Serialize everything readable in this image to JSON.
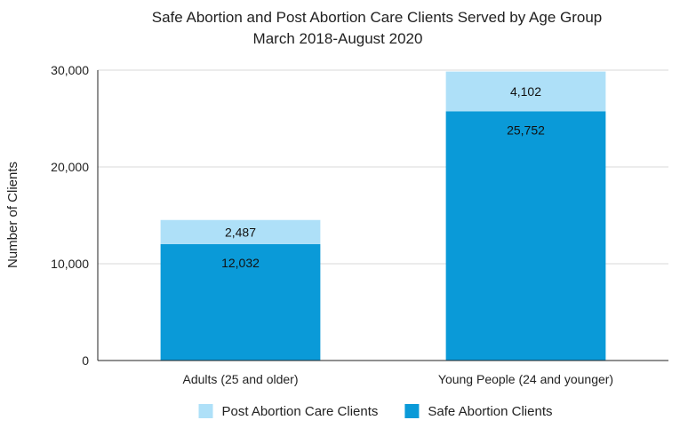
{
  "chart_data": {
    "type": "bar",
    "stacked": true,
    "title": "Safe Abortion and Post Abortion Care Clients Served by Age Group",
    "subtitle": "March 2018-August 2020",
    "xlabel": "",
    "ylabel": "Number of Clients",
    "ylim": [
      0,
      30000
    ],
    "yticks": [
      0,
      10000,
      20000,
      30000
    ],
    "ytick_labels": [
      "0",
      "10,000",
      "20,000",
      "30,000"
    ],
    "grid": true,
    "legend_position": "bottom",
    "categories": [
      "Adults (25 and older)",
      "Young People (24 and younger)"
    ],
    "series": [
      {
        "name": "Safe Abortion Clients",
        "values": [
          12032,
          25752
        ],
        "labels": [
          "12,032",
          "25,752"
        ],
        "color": "#0a9ad8"
      },
      {
        "name": "Post Abortion Care Clients",
        "values": [
          2487,
          4102
        ],
        "labels": [
          "2,487",
          "4,102"
        ],
        "color": "#aee0f8"
      }
    ],
    "legend_order": [
      1,
      0
    ]
  },
  "colors": {
    "axis": "#222222",
    "grid": "#d9d9d9",
    "text": "#222222"
  }
}
